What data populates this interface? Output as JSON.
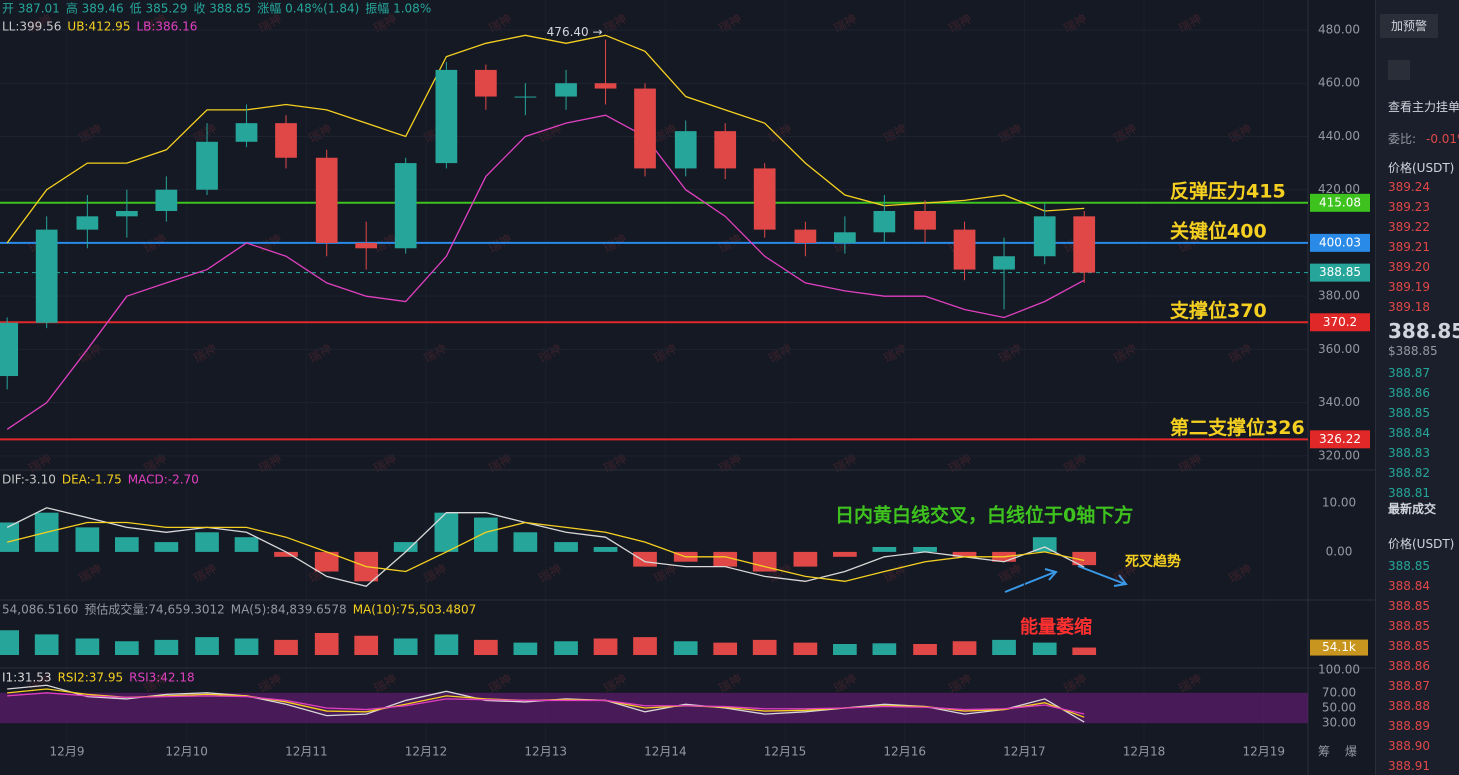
{
  "chart_data": [
    {
      "type": "candlestick",
      "info": [
        "开 387.01",
        "高 389.46",
        "低 385.29",
        "收 388.85",
        "涨幅 0.48%(1.84)",
        "振幅 1.08%"
      ],
      "indicators": [
        {
          "text": "LL:399.56",
          "color": "#c8c8c8"
        },
        {
          "text": "UB:412.95",
          "color": "#f5d020"
        },
        {
          "text": "LB:386.16",
          "color": "#e040c0"
        }
      ],
      "x": [
        8.5,
        8.83,
        9.17,
        9.5,
        9.83,
        10.17,
        10.5,
        10.83,
        11.17,
        11.5,
        11.83,
        12.17,
        12.5,
        12.83,
        13.17,
        13.5,
        13.83,
        14.17,
        14.5,
        14.83,
        15.17,
        15.5,
        15.83,
        16.17,
        16.5,
        16.83,
        17.17,
        17.5
      ],
      "open": [
        350,
        370,
        405,
        410,
        412,
        420,
        438,
        445,
        432,
        400,
        398,
        430,
        465,
        455,
        455,
        460,
        458,
        428,
        442,
        428,
        405,
        400,
        404,
        412,
        405,
        390,
        395,
        410
      ],
      "high": [
        372,
        410,
        418,
        420,
        425,
        445,
        452,
        448,
        435,
        408,
        432,
        468,
        467,
        460,
        465,
        476.4,
        460,
        446,
        445,
        430,
        408,
        410,
        418,
        416,
        408,
        402,
        415,
        412
      ],
      "low": [
        345,
        368,
        398,
        402,
        408,
        418,
        436,
        428,
        395,
        390,
        396,
        428,
        450,
        448,
        450,
        452,
        425,
        425,
        424,
        402,
        395,
        396,
        400,
        400,
        386,
        375,
        392,
        385
      ],
      "close": [
        370,
        405,
        410,
        412,
        420,
        438,
        445,
        432,
        400,
        398,
        430,
        465,
        455,
        455,
        460,
        458,
        428,
        442,
        428,
        405,
        400,
        404,
        412,
        405,
        390,
        395,
        410,
        388.85
      ],
      "up_color": "#26a69a",
      "down_color": "#e04848",
      "series": [
        {
          "name": "UB",
          "color": "#f5d020",
          "values": [
            400,
            420,
            430,
            430,
            435,
            450,
            450,
            452,
            450,
            445,
            440,
            470,
            475,
            478,
            475,
            478,
            472,
            455,
            450,
            445,
            430,
            418,
            414,
            415,
            416,
            418,
            412,
            413
          ]
        },
        {
          "name": "LB",
          "color": "#e040c0",
          "values": [
            330,
            340,
            360,
            380,
            385,
            390,
            400,
            395,
            385,
            380,
            378,
            395,
            425,
            440,
            445,
            448,
            440,
            420,
            410,
            395,
            385,
            382,
            380,
            380,
            375,
            372,
            378,
            386
          ]
        }
      ],
      "levels": [
        {
          "value": 415.08,
          "color": "#3ec21e",
          "label": "反弹压力415"
        },
        {
          "value": 400.03,
          "color": "#2a8ae8",
          "label": "关键位400"
        },
        {
          "value": 388.85,
          "color": "#26a69a",
          "dashed": true
        },
        {
          "value": 370.2,
          "color": "#e02828",
          "label": "支撑位370"
        },
        {
          "value": 326.22,
          "color": "#e02828",
          "label": "第二支撑位326"
        }
      ],
      "high_marker": {
        "label": "476.40 →",
        "x": 13.5,
        "value": 476.4
      },
      "xlim": [
        8.44,
        19.37
      ],
      "ylim": [
        314.7,
        491.27
      ],
      "yticks": [
        {
          "value": 320,
          "label": "320.00"
        },
        {
          "value": 340,
          "label": "340.00"
        },
        {
          "value": 360,
          "label": "360.00"
        },
        {
          "value": 380,
          "label": "380.00"
        },
        {
          "value": 420,
          "label": "420.00"
        },
        {
          "value": 440,
          "label": "440.00"
        },
        {
          "value": 460,
          "label": "460.00"
        },
        {
          "value": 480,
          "label": "480.00"
        }
      ],
      "xticks": [
        {
          "value": 9,
          "label": "12月9"
        },
        {
          "value": 10,
          "label": "12月10"
        },
        {
          "value": 11,
          "label": "12月11"
        },
        {
          "value": 12,
          "label": "12月12"
        },
        {
          "value": 13,
          "label": "12月13"
        },
        {
          "value": 14,
          "label": "12月14"
        },
        {
          "value": 15,
          "label": "12月15"
        },
        {
          "value": 16,
          "label": "12月16"
        },
        {
          "value": 17,
          "label": "12月17"
        },
        {
          "value": 18,
          "label": "12月18"
        },
        {
          "value": 19,
          "label": "12月19"
        }
      ],
      "grid": true
    },
    {
      "type": "macd",
      "indicators": [
        {
          "text": "DIF:-3.10",
          "color": "#c8c8c8"
        },
        {
          "text": "DEA:-1.75",
          "color": "#f5d020"
        },
        {
          "text": "MACD:-2.70",
          "color": "#e040c0"
        }
      ],
      "x": [
        8.5,
        8.83,
        9.17,
        9.5,
        9.83,
        10.17,
        10.5,
        10.83,
        11.17,
        11.5,
        11.83,
        12.17,
        12.5,
        12.83,
        13.17,
        13.5,
        13.83,
        14.17,
        14.5,
        14.83,
        15.17,
        15.5,
        15.83,
        16.17,
        16.5,
        16.83,
        17.17,
        17.5
      ],
      "values": [
        6,
        8,
        5,
        3,
        2,
        4,
        3,
        -1,
        -4,
        -6,
        2,
        8,
        7,
        4,
        2,
        1,
        -3,
        -2,
        -3,
        -4,
        -3,
        -1,
        1,
        1,
        -1,
        -2,
        3,
        -2.7
      ],
      "up_color": "#26a69a",
      "down_color": "#e04848",
      "series": [
        {
          "name": "DIF",
          "color": "#d8d8d8",
          "values": [
            5,
            9,
            7,
            5,
            4,
            5,
            4,
            0,
            -5,
            -7,
            0,
            8,
            8,
            6,
            4,
            3,
            -2,
            -3,
            -3,
            -5,
            -6,
            -4,
            -1,
            0,
            -1,
            -2,
            1,
            -3.1
          ]
        },
        {
          "name": "DEA",
          "color": "#f5d020",
          "values": [
            2,
            4,
            6,
            6,
            5,
            5,
            5,
            3,
            0,
            -3,
            -4,
            0,
            4,
            6,
            5,
            4,
            2,
            -1,
            -1,
            -3,
            -5,
            -6,
            -4,
            -2,
            -1,
            -1,
            0,
            -1.75
          ]
        }
      ],
      "annotations": [
        {
          "text": "日内黄白线交叉，白线位于0轴下方",
          "color": "#3ec21e"
        },
        {
          "text": "死叉趋势",
          "color": "#f5d020"
        }
      ],
      "xlim": [
        8.44,
        19.37
      ],
      "ylim": [
        -9.4,
        16.7
      ],
      "yticks": [
        {
          "value": 0,
          "label": "0.00"
        },
        {
          "value": 10,
          "label": "10.00"
        }
      ]
    },
    {
      "type": "volume",
      "indicators": [
        {
          "text": "54,086.5160",
          "color": "#9598a1"
        },
        {
          "text": "预估成交量:74,659.3012",
          "color": "#9598a1"
        },
        {
          "text": "MA(5):84,839.6578",
          "color": "#9598a1"
        },
        {
          "text": "MA(10):75,503.4807",
          "color": "#f5d020"
        }
      ],
      "x": [
        8.5,
        8.83,
        9.17,
        9.5,
        9.83,
        10.17,
        10.5,
        10.83,
        11.17,
        11.5,
        11.83,
        12.17,
        12.5,
        12.83,
        13.17,
        13.5,
        13.83,
        14.17,
        14.5,
        14.83,
        15.17,
        15.5,
        15.83,
        16.17,
        16.5,
        16.83,
        17.17,
        17.5
      ],
      "values": [
        180000,
        150000,
        120000,
        100000,
        110000,
        130000,
        120000,
        110000,
        160000,
        140000,
        120000,
        150000,
        110000,
        90000,
        100000,
        120000,
        130000,
        100000,
        90000,
        110000,
        90000,
        80000,
        85000,
        80000,
        100000,
        110000,
        90000,
        54086.516
      ],
      "annotations": [
        {
          "text": "能量萎缩",
          "color": "#ff3030"
        }
      ],
      "xlim": [
        8.44,
        19.37
      ],
      "ylim": [
        0,
        400000
      ],
      "yticks": [
        {
          "value": 54086.516,
          "label": "54.1k"
        }
      ]
    },
    {
      "type": "rsi",
      "indicators": [
        {
          "text": "I1:31.53",
          "color": "#d8d8d8"
        },
        {
          "text": "RSI2:37.95",
          "color": "#f5d020"
        },
        {
          "text": "RSI3:42.18",
          "color": "#e040c0"
        }
      ],
      "x": [
        8.5,
        8.83,
        9.17,
        9.5,
        9.83,
        10.17,
        10.5,
        10.83,
        11.17,
        11.5,
        11.83,
        12.17,
        12.5,
        12.83,
        13.17,
        13.5,
        13.83,
        14.17,
        14.5,
        14.83,
        15.17,
        15.5,
        15.83,
        16.17,
        16.5,
        16.83,
        17.17,
        17.5
      ],
      "series": [
        {
          "name": "RSI1",
          "color": "#d8d8d8",
          "values": [
            75,
            80,
            65,
            62,
            68,
            70,
            66,
            55,
            40,
            42,
            60,
            72,
            60,
            58,
            62,
            60,
            45,
            55,
            50,
            42,
            45,
            50,
            55,
            52,
            42,
            48,
            62,
            31.53
          ]
        },
        {
          "name": "RSI2",
          "color": "#f5d020",
          "values": [
            70,
            75,
            68,
            64,
            66,
            68,
            66,
            58,
            46,
            45,
            55,
            66,
            62,
            60,
            61,
            60,
            50,
            53,
            51,
            46,
            47,
            50,
            53,
            52,
            46,
            48,
            57,
            37.95
          ]
        },
        {
          "name": "RSI3",
          "color": "#e040c0",
          "values": [
            66,
            70,
            66,
            64,
            65,
            66,
            65,
            60,
            50,
            48,
            53,
            62,
            61,
            60,
            60,
            60,
            53,
            53,
            52,
            49,
            49,
            50,
            52,
            51,
            48,
            49,
            54,
            42.18
          ]
        }
      ],
      "band_color": "#6a1a7a",
      "xlim": [
        8.44,
        19.37
      ],
      "ylim": [
        0,
        102.7
      ],
      "yticks": [
        {
          "value": 30,
          "label": "30.00"
        },
        {
          "value": 50,
          "label": "50.00"
        },
        {
          "value": 70,
          "label": "70.00"
        },
        {
          "value": 100,
          "label": "100.00"
        }
      ]
    }
  ],
  "watermark": "瑞神",
  "corner_buttons": [
    "筹",
    "爆"
  ],
  "side_panel": {
    "alert_button": "加预警",
    "order_book_link": "查看主力挂单",
    "ratio_label": "委比:",
    "ratio": "-0.01%",
    "price_header": "价格(USDT)",
    "asks": [
      "389.24",
      "389.23",
      "389.22",
      "389.21",
      "389.20",
      "389.19",
      "389.18"
    ],
    "last_price": "388.85",
    "last_price_usd": "$388.85",
    "bids": [
      "388.87",
      "388.86",
      "388.85",
      "388.84",
      "388.83",
      "388.82",
      "388.81"
    ],
    "trades_title": "最新成交",
    "trades_header": "价格(USDT)",
    "trades": [
      "388.85",
      "388.84",
      "388.85",
      "388.85",
      "388.85",
      "388.86",
      "388.87",
      "388.88",
      "388.89",
      "388.90",
      "388.91"
    ]
  }
}
